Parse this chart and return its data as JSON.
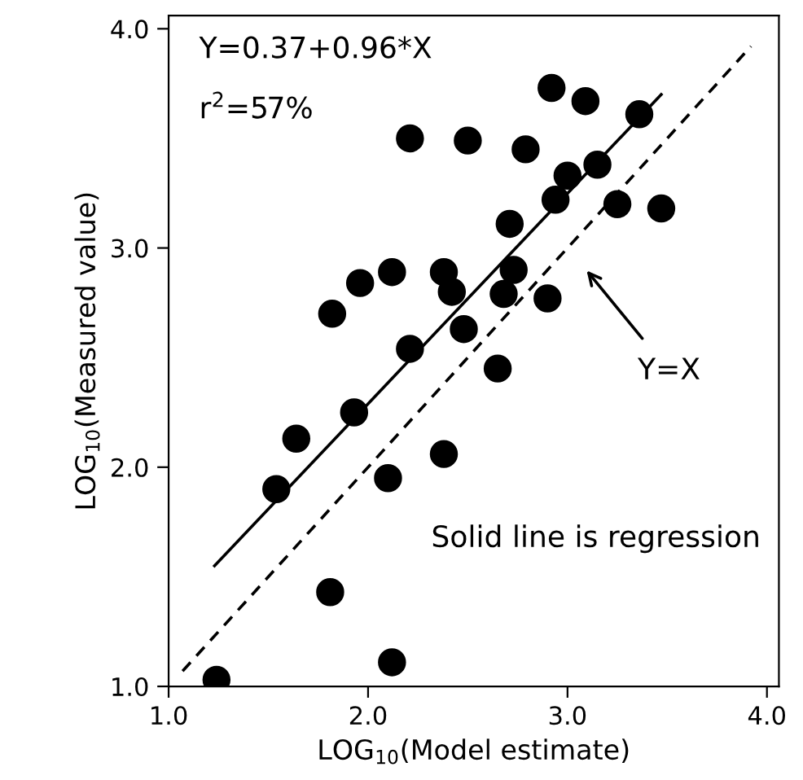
{
  "chart_data": {
    "type": "scatter",
    "xlabel": "LOG$_{10}$(Model estimate)",
    "ylabel": "LOG$_{10}$(Measured value)",
    "xlim": [
      1.0,
      4.06
    ],
    "ylim": [
      1.0,
      4.06
    ],
    "xticks": [
      {
        "value": 1,
        "label": "1.0"
      },
      {
        "value": 2,
        "label": "2.0"
      },
      {
        "value": 3,
        "label": "3.0"
      },
      {
        "value": 4,
        "label": "4.0"
      }
    ],
    "yticks": [
      {
        "value": 1,
        "label": "1.0"
      },
      {
        "value": 2,
        "label": "2.0"
      },
      {
        "value": 3,
        "label": "3.0"
      },
      {
        "value": 4,
        "label": "4.0"
      }
    ],
    "grid": false,
    "legend": false,
    "series": [
      {
        "color": "#000000",
        "marker": "circle",
        "x": [
          2.92,
          3.09,
          3.36,
          2.21,
          2.5,
          2.79,
          3.15,
          3.0,
          2.94,
          3.25,
          3.47,
          2.71,
          1.96,
          2.12,
          2.38,
          2.73,
          2.42,
          2.68,
          2.9,
          1.82,
          2.48,
          2.21,
          2.65,
          1.93,
          1.64,
          1.54,
          2.1,
          2.38,
          1.81,
          2.12,
          1.24
        ],
        "values": [
          3.73,
          3.67,
          3.61,
          3.5,
          3.49,
          3.45,
          3.38,
          3.33,
          3.22,
          3.2,
          3.18,
          3.11,
          2.84,
          2.89,
          2.89,
          2.9,
          2.8,
          2.79,
          2.77,
          2.7,
          2.63,
          2.54,
          2.45,
          2.25,
          2.13,
          1.9,
          1.95,
          2.06,
          1.43,
          1.11,
          1.03
        ]
      },
      {
        "type": "line",
        "color": "#000000",
        "line_style": "solid",
        "marker": "none",
        "x": [
          1.23,
          3.47
        ],
        "values": [
          1.55,
          3.7
        ]
      },
      {
        "type": "line",
        "color": "#000000",
        "line_style": "dashed",
        "marker": "none",
        "x": [
          1.07,
          3.92
        ],
        "values": [
          1.07,
          3.92
        ]
      }
    ],
    "annotations": [
      "Y=0.37+0.96*X",
      "r$^{2}$=57%",
      "Solid line is regression",
      "Y=X"
    ]
  }
}
